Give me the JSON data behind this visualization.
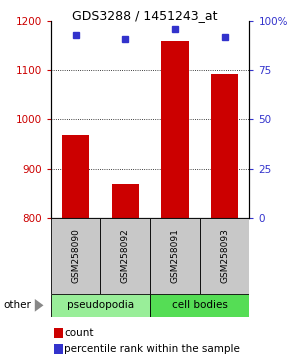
{
  "title": "GDS3288 / 1451243_at",
  "samples": [
    "GSM258090",
    "GSM258092",
    "GSM258091",
    "GSM258093"
  ],
  "groups": [
    "pseudopodia",
    "pseudopodia",
    "cell bodies",
    "cell bodies"
  ],
  "counts": [
    968,
    868,
    1160,
    1093
  ],
  "percentiles": [
    93,
    91,
    96,
    92
  ],
  "ylim_left": [
    800,
    1200
  ],
  "ylim_right": [
    0,
    100
  ],
  "yticks_left": [
    800,
    900,
    1000,
    1100,
    1200
  ],
  "yticks_right": [
    0,
    25,
    50,
    75,
    100
  ],
  "ytick_right_labels": [
    "0",
    "25",
    "50",
    "75",
    "100%"
  ],
  "bar_color": "#cc0000",
  "dot_color": "#3333cc",
  "pseudopodia_color": "#99ee99",
  "cellbodies_color": "#55dd55",
  "label_color_left": "#cc0000",
  "label_color_right": "#3333cc",
  "grid_lines": [
    900,
    1000,
    1100
  ],
  "bar_width": 0.55,
  "legend_count_color": "#cc0000",
  "legend_pct_color": "#3333cc"
}
